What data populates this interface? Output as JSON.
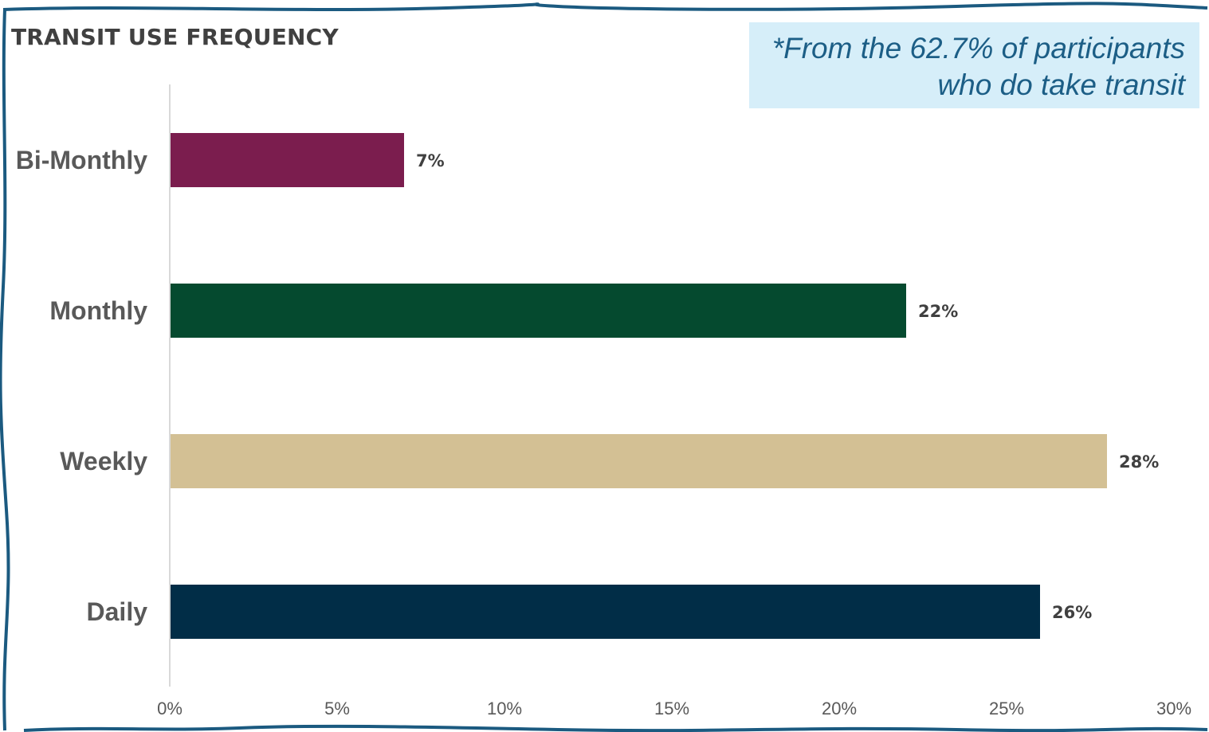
{
  "title": "TRANSIT USE FREQUENCY",
  "note": {
    "line1": "*From the 62.7% of participants",
    "line2": "who do take transit"
  },
  "colors": {
    "frame": "#1b5a80",
    "note_background": "#d6eef9",
    "note_text": "#1c5e86",
    "axis_line": "#d9d9d9"
  },
  "chart_data": {
    "type": "bar",
    "orientation": "horizontal",
    "categories": [
      "Bi-Monthly",
      "Monthly",
      "Weekly",
      "Daily"
    ],
    "values": [
      7,
      22,
      28,
      26
    ],
    "data_labels": [
      "7%",
      "22%",
      "28%",
      "26%"
    ],
    "colors": [
      "#7b1d4e",
      "#054a2f",
      "#d3c094",
      "#012d47"
    ],
    "xlim": [
      0,
      30
    ],
    "xticks": [
      0,
      5,
      10,
      15,
      20,
      25,
      30
    ],
    "xtick_labels": [
      "0%",
      "5%",
      "10%",
      "15%",
      "20%",
      "25%",
      "30%"
    ],
    "title": "TRANSIT USE FREQUENCY",
    "xlabel": "",
    "ylabel": "",
    "grid": false,
    "legend": "none"
  }
}
